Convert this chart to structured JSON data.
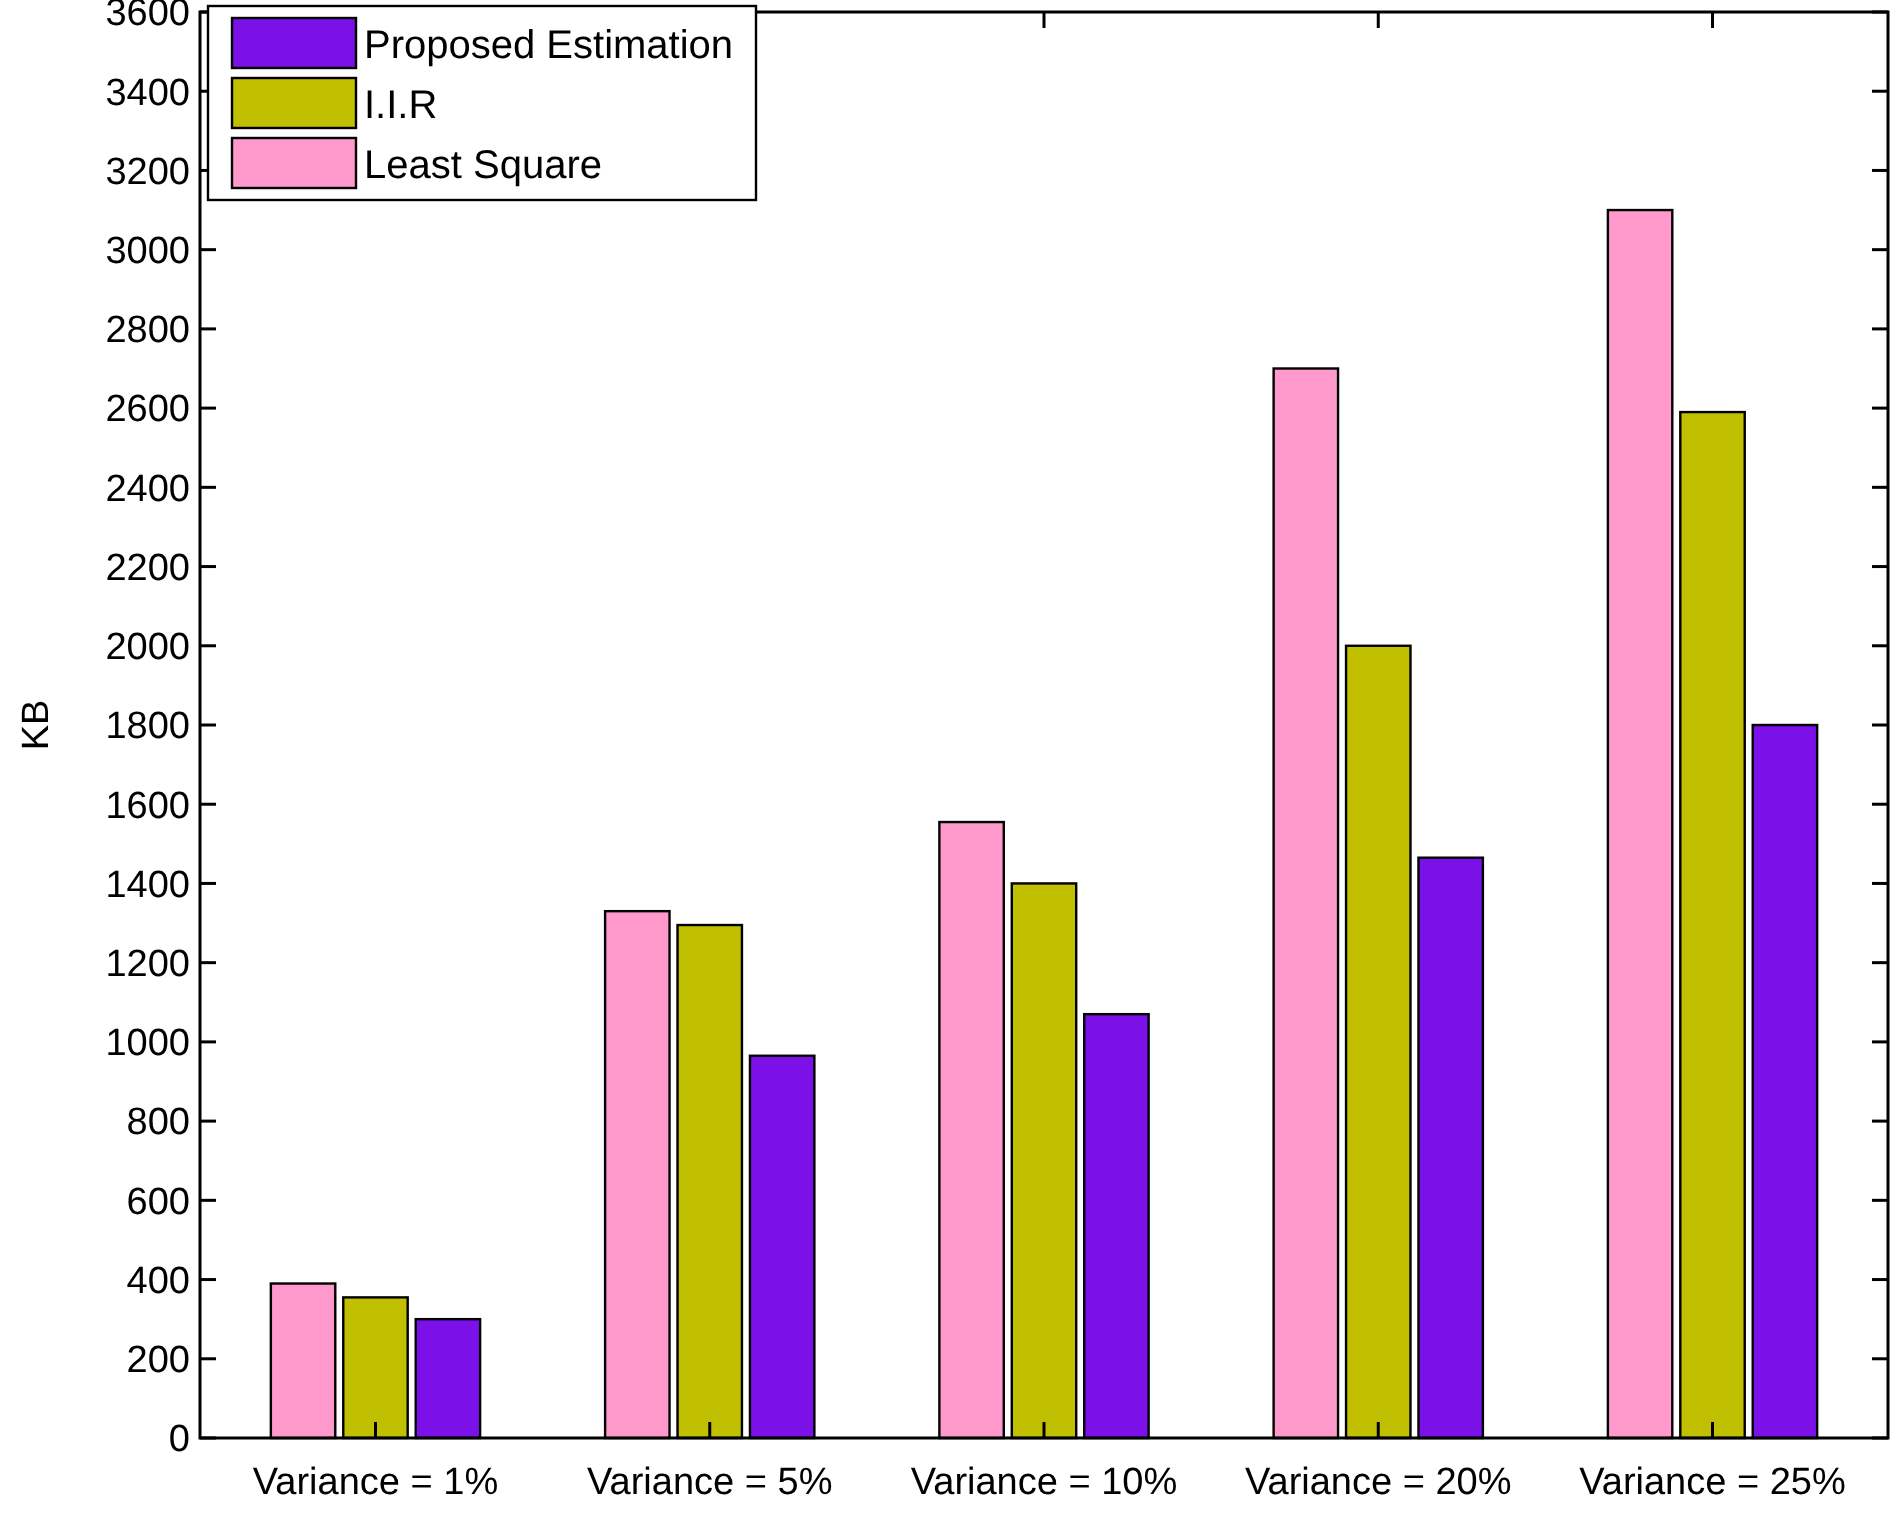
{
  "chart_data": {
    "type": "bar",
    "ylabel": "KB",
    "categories": [
      "Variance = 1%",
      "Variance = 5%",
      "Variance = 10%",
      "Variance = 20%",
      "Variance = 25%"
    ],
    "series": [
      {
        "name": "Proposed Estimation",
        "color": "#7b10e8",
        "values": [
          300,
          965,
          1070,
          1465,
          1800
        ]
      },
      {
        "name": "I.I.R",
        "color": "#c0bf00",
        "values": [
          355,
          1295,
          1400,
          2000,
          2590
        ]
      },
      {
        "name": "Least Square",
        "color": "#ff99cc",
        "values": [
          390,
          1330,
          1555,
          2700,
          3100
        ]
      }
    ],
    "ylim": [
      0,
      3600
    ],
    "yticks": [
      0,
      200,
      400,
      600,
      800,
      1000,
      1200,
      1400,
      1600,
      1800,
      2000,
      2200,
      2400,
      2600,
      2800,
      3000,
      3200,
      3400,
      3600
    ],
    "grid": false,
    "legend": "top left"
  }
}
